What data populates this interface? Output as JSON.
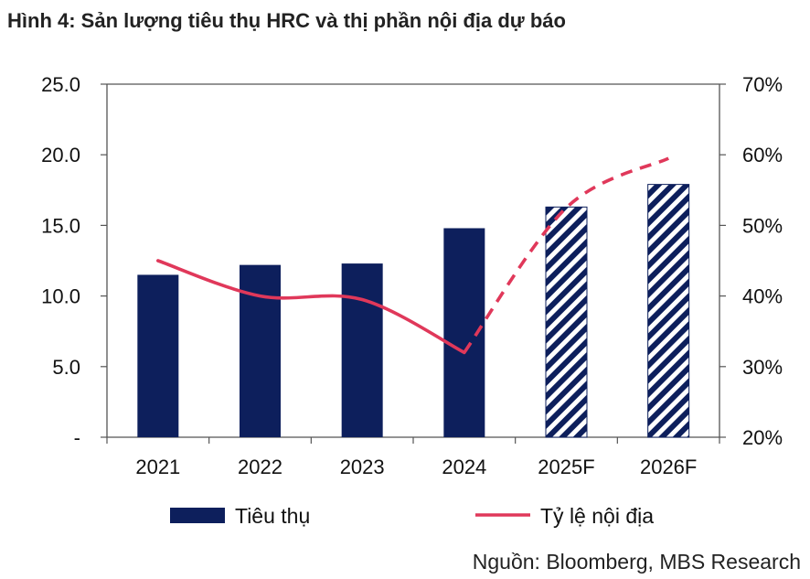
{
  "chart_data": {
    "type": "bar",
    "title": "Hình 4: Sản lượng tiêu thụ HRC và thị phần nội địa dự báo",
    "source": "Nguồn: Bloomberg, MBS Research",
    "categories": [
      "2021",
      "2022",
      "2023",
      "2024",
      "2025F",
      "2026F"
    ],
    "forecast_from_index": 4,
    "left_axis": {
      "min": 0,
      "max": 25,
      "step": 5,
      "tick_labels": [
        "-",
        "5.0",
        "10.0",
        "15.0",
        "20.0",
        "25.0"
      ]
    },
    "right_axis": {
      "min": 20,
      "max": 70,
      "step": 10,
      "tick_labels": [
        "20%",
        "30%",
        "40%",
        "50%",
        "60%",
        "70%"
      ]
    },
    "series": [
      {
        "name": "Tiêu thụ",
        "kind": "bar",
        "axis": "left",
        "color": "#0d1f5c",
        "values": [
          11.5,
          12.2,
          12.3,
          14.8,
          16.3,
          17.9
        ]
      },
      {
        "name": "Tỷ lệ nội địa",
        "kind": "line",
        "axis": "right",
        "color": "#e0385a",
        "values": [
          45,
          40,
          39.5,
          32,
          52.5,
          59.5
        ]
      }
    ],
    "legend_position": "bottom",
    "grid": false
  }
}
